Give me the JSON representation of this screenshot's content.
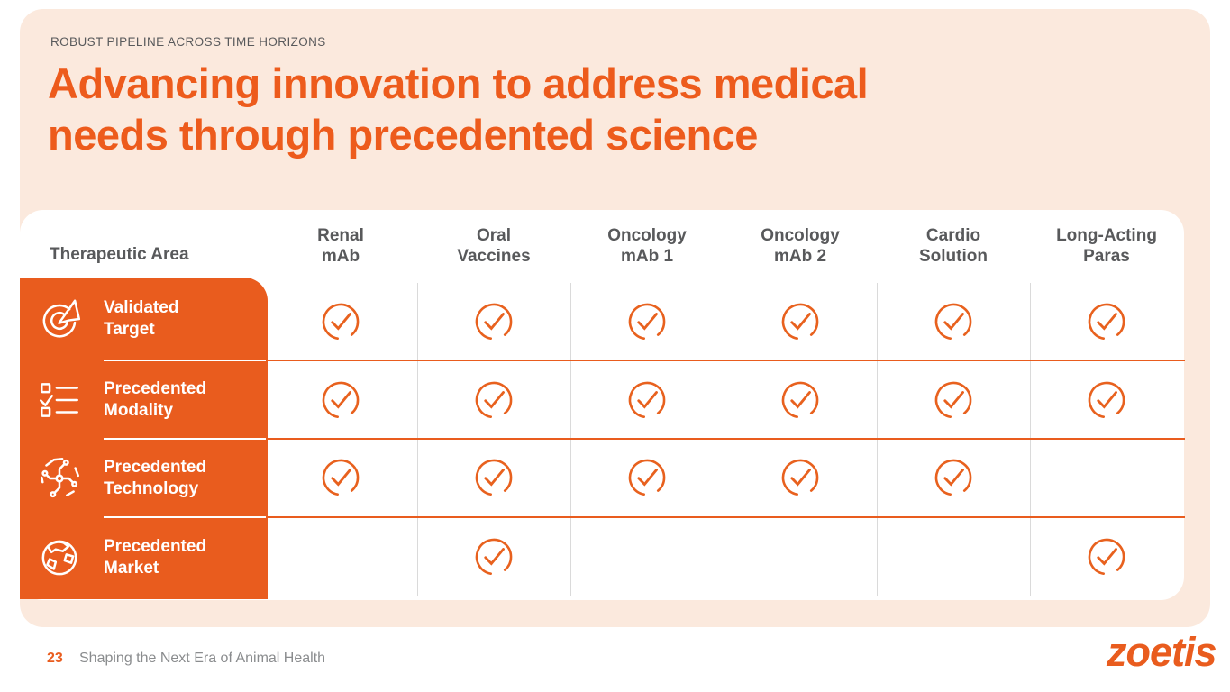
{
  "slide": {
    "eyebrow": "ROBUST PIPELINE ACROSS TIME HORIZONS",
    "title": "Advancing innovation to address medical needs through precedented science",
    "title_lines": [
      "Advancing innovation to address medical",
      "needs through precedented science"
    ]
  },
  "table": {
    "corner_label": "Therapeutic Area",
    "columns": [
      "Renal\nmAb",
      "Oral\nVaccines",
      "Oncology\nmAb 1",
      "Oncology\nmAb 2",
      "Cardio\nSolution",
      "Long-Acting\nParas"
    ],
    "rows": [
      {
        "label": "Validated\nTarget",
        "icon": "target-arrow-icon",
        "checks": [
          true,
          true,
          true,
          true,
          true,
          true
        ]
      },
      {
        "label": "Precedented\nModality",
        "icon": "checklist-icon",
        "checks": [
          true,
          true,
          true,
          true,
          true,
          true
        ]
      },
      {
        "label": "Precedented\nTechnology",
        "icon": "circuit-board-icon",
        "checks": [
          true,
          true,
          true,
          true,
          true,
          false
        ]
      },
      {
        "label": "Precedented\nMarket",
        "icon": "globe-icon",
        "checks": [
          false,
          true,
          false,
          false,
          false,
          true
        ]
      }
    ],
    "check_icon": "check-circle-icon"
  },
  "footer": {
    "page_number": "23",
    "tagline": "Shaping the Next Era of Animal Health",
    "logo_text": "zoetis"
  },
  "colors": {
    "accent_orange": "#E95C1E",
    "title_orange": "#ED5B1C",
    "peach_background": "#FBE9DD",
    "heading_gray": "#58595B",
    "tagline_gray": "#8A8C8E",
    "divider_gray": "#DADADA",
    "check_orange": "#E8611E"
  }
}
